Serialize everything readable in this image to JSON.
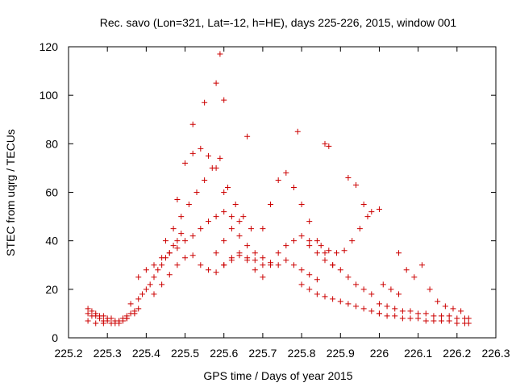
{
  "chart_data": {
    "type": "scatter",
    "title": "Rec. savo (Lon=321, Lat=-12, h=HE), days 225-226, 2015, window 001",
    "xlabel": "GPS time / Days of year 2015",
    "ylabel": "STEC from uqrg / TECUs",
    "xlim": [
      225.2,
      226.3
    ],
    "ylim": [
      0,
      120
    ],
    "xticks": [
      225.2,
      225.3,
      225.4,
      225.5,
      225.6,
      225.7,
      225.8,
      225.9,
      226,
      226.1,
      226.2,
      226.3
    ],
    "xtick_labels": [
      "225.2",
      "225.3",
      "225.4",
      "225.5",
      "225.6",
      "225.7",
      "225.8",
      "225.9",
      "226",
      "226.1",
      "226.2",
      "226.3"
    ],
    "yticks": [
      0,
      20,
      40,
      60,
      80,
      100,
      120
    ],
    "ytick_labels": [
      "0",
      "20",
      "40",
      "60",
      "80",
      "100",
      "120"
    ],
    "grid": false,
    "legend": "none",
    "marker": "plus",
    "color": "#cc0000",
    "series": [
      {
        "x": [
          225.25,
          225.26,
          225.27,
          225.28,
          225.29,
          225.3,
          225.31,
          225.32,
          225.33,
          225.34,
          225.35,
          225.36,
          225.37,
          225.38,
          225.25,
          225.26,
          225.27,
          225.28,
          225.29,
          225.3,
          225.31,
          225.32,
          225.33,
          225.34,
          225.35,
          225.25,
          225.27,
          225.29,
          225.31,
          225.33,
          225.35,
          225.37,
          225.36,
          225.38,
          225.39,
          225.4,
          225.41,
          225.42,
          225.43,
          225.44,
          225.45,
          225.46,
          225.47,
          225.48,
          225.49,
          225.38,
          225.4,
          225.42,
          225.44,
          225.46,
          225.48,
          225.5,
          225.52,
          225.54,
          225.56,
          225.58,
          225.6,
          225.62,
          225.64,
          225.42,
          225.44,
          225.46,
          225.48,
          225.5,
          225.52,
          225.54,
          225.56,
          225.58,
          225.6,
          225.62,
          225.64,
          225.66,
          225.68,
          225.7,
          225.45,
          225.47,
          225.49,
          225.51,
          225.53,
          225.55,
          225.57,
          225.59,
          225.61,
          225.63,
          225.65,
          225.67,
          225.48,
          225.5,
          225.52,
          225.54,
          225.56,
          225.58,
          225.6,
          225.58,
          225.6,
          225.62,
          225.64,
          225.66,
          225.68,
          225.7,
          225.72,
          225.74,
          225.76,
          225.78,
          225.8,
          225.82,
          225.84,
          225.6,
          225.62,
          225.64,
          225.66,
          225.68,
          225.7,
          225.72,
          225.74,
          225.76,
          225.78,
          225.8,
          225.82,
          225.84,
          225.86,
          225.88,
          225.7,
          225.72,
          225.74,
          225.76,
          225.78,
          225.8,
          225.82,
          225.84,
          225.86,
          225.88,
          225.9,
          225.92,
          225.94,
          225.96,
          225.98,
          225.8,
          225.82,
          225.84,
          225.86,
          225.88,
          225.9,
          225.92,
          225.94,
          225.96,
          225.98,
          226.0,
          225.82,
          225.85,
          225.87,
          225.89,
          225.91,
          225.93,
          225.95,
          225.97,
          226.0,
          226.05,
          225.86,
          225.87,
          225.92,
          225.94,
          225.96,
          225.98,
          226.0,
          226.02,
          226.04,
          226.06,
          226.08,
          226.1,
          226.12,
          226.14,
          226.16,
          226.18,
          226.2,
          226.22,
          226.23,
          226.0,
          226.02,
          226.04,
          226.06,
          226.08,
          226.1,
          226.12,
          226.14,
          226.16,
          226.18,
          226.2,
          226.22,
          226.23,
          226.01,
          226.03,
          226.05,
          226.07,
          226.09,
          226.11,
          226.13,
          226.15,
          226.17,
          226.19,
          226.21,
          225.52,
          225.55,
          225.58,
          225.59,
          225.6,
          225.66,
          225.79
        ],
        "y": [
          12,
          11,
          10,
          9,
          9,
          8,
          8,
          7,
          7,
          8,
          9,
          10,
          11,
          12,
          10,
          9,
          9,
          8,
          7,
          7,
          6,
          6,
          6,
          7,
          8,
          7,
          6,
          6,
          6,
          7,
          8,
          10,
          14,
          16,
          18,
          20,
          22,
          25,
          28,
          30,
          33,
          35,
          38,
          40,
          43,
          25,
          28,
          30,
          33,
          35,
          37,
          40,
          42,
          45,
          48,
          50,
          52,
          50,
          48,
          18,
          22,
          26,
          30,
          33,
          34,
          30,
          28,
          27,
          30,
          33,
          35,
          32,
          28,
          25,
          40,
          45,
          50,
          55,
          60,
          65,
          70,
          74,
          62,
          55,
          50,
          45,
          57,
          72,
          76,
          78,
          75,
          70,
          60,
          35,
          40,
          45,
          42,
          38,
          35,
          33,
          31,
          30,
          32,
          30,
          28,
          26,
          24,
          30,
          32,
          34,
          33,
          32,
          30,
          30,
          35,
          38,
          40,
          42,
          38,
          35,
          32,
          30,
          45,
          55,
          65,
          68,
          62,
          55,
          48,
          40,
          35,
          30,
          28,
          25,
          22,
          20,
          18,
          22,
          20,
          18,
          17,
          16,
          15,
          14,
          13,
          12,
          11,
          10,
          40,
          38,
          36,
          35,
          36,
          40,
          45,
          50,
          53,
          35,
          80,
          79,
          66,
          63,
          55,
          52,
          10,
          9,
          9,
          8,
          8,
          8,
          7,
          7,
          7,
          7,
          6,
          6,
          6,
          14,
          13,
          12,
          11,
          11,
          10,
          10,
          9,
          9,
          9,
          8,
          8,
          8,
          22,
          20,
          18,
          28,
          25,
          30,
          20,
          15,
          13,
          12,
          11,
          88,
          97,
          105,
          117,
          98,
          83,
          85
        ]
      }
    ]
  }
}
